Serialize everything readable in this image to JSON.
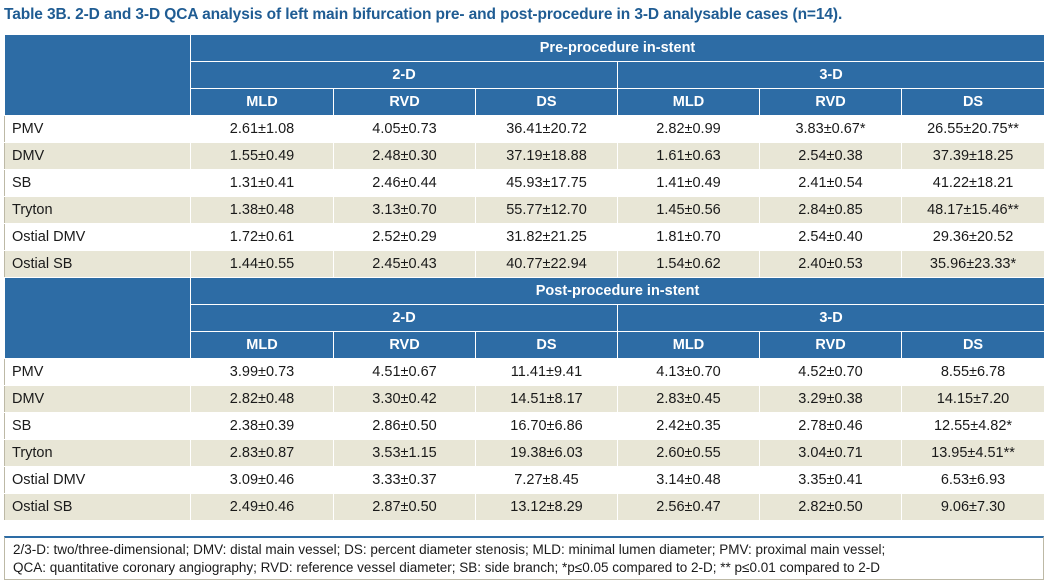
{
  "title": "Table 3B. 2-D and 3-D QCA analysis of left main bifurcation pre- and post-procedure in 3-D analysable cases (n=14).",
  "sections": [
    {
      "heading": "Pre-procedure in-stent",
      "groups": [
        "2-D",
        "3-D"
      ],
      "columns": [
        "MLD",
        "RVD",
        "DS",
        "MLD",
        "RVD",
        "DS"
      ],
      "rows": [
        {
          "label": "PMV",
          "cells": [
            "2.61±1.08",
            "4.05±0.73",
            "36.41±20.72",
            "2.82±0.99",
            "3.83±0.67*",
            "26.55±20.75**"
          ]
        },
        {
          "label": "DMV",
          "cells": [
            "1.55±0.49",
            "2.48±0.30",
            "37.19±18.88",
            "1.61±0.63",
            "2.54±0.38",
            "37.39±18.25"
          ]
        },
        {
          "label": "SB",
          "cells": [
            "1.31±0.41",
            "2.46±0.44",
            "45.93±17.75",
            "1.41±0.49",
            "2.41±0.54",
            "41.22±18.21"
          ]
        },
        {
          "label": "Tryton",
          "cells": [
            "1.38±0.48",
            "3.13±0.70",
            "55.77±12.70",
            "1.45±0.56",
            "2.84±0.85",
            "48.17±15.46**"
          ]
        },
        {
          "label": "Ostial DMV",
          "cells": [
            "1.72±0.61",
            "2.52±0.29",
            "31.82±21.25",
            "1.81±0.70",
            "2.54±0.40",
            "29.36±20.52"
          ]
        },
        {
          "label": "Ostial SB",
          "cells": [
            "1.44±0.55",
            "2.45±0.43",
            "40.77±22.94",
            "1.54±0.62",
            "2.40±0.53",
            "35.96±23.33*"
          ]
        }
      ]
    },
    {
      "heading": "Post-procedure in-stent",
      "groups": [
        "2-D",
        "3-D"
      ],
      "columns": [
        "MLD",
        "RVD",
        "DS",
        "MLD",
        "RVD",
        "DS"
      ],
      "rows": [
        {
          "label": "PMV",
          "cells": [
            "3.99±0.73",
            "4.51±0.67",
            "11.41±9.41",
            "4.13±0.70",
            "4.52±0.70",
            "8.55±6.78"
          ]
        },
        {
          "label": "DMV",
          "cells": [
            "2.82±0.48",
            "3.30±0.42",
            "14.51±8.17",
            "2.83±0.45",
            "3.29±0.38",
            "14.15±7.20"
          ]
        },
        {
          "label": "SB",
          "cells": [
            "2.38±0.39",
            "2.86±0.50",
            "16.70±6.86",
            "2.42±0.35",
            "2.78±0.46",
            "12.55±4.82*"
          ]
        },
        {
          "label": "Tryton",
          "cells": [
            "2.83±0.87",
            "3.53±1.15",
            "19.38±6.03",
            "2.60±0.55",
            "3.04±0.71",
            "13.95±4.51**"
          ]
        },
        {
          "label": "Ostial DMV",
          "cells": [
            "3.09±0.46",
            "3.33±0.37",
            "7.27±8.45",
            "3.14±0.48",
            "3.35±0.41",
            "6.53±6.93"
          ]
        },
        {
          "label": "Ostial SB",
          "cells": [
            "2.49±0.46",
            "2.87±0.50",
            "13.12±8.29",
            "2.56±0.47",
            "2.82±0.50",
            "9.06±7.30"
          ]
        }
      ]
    }
  ],
  "footnote": {
    "line1": "2/3-D: two/three-dimensional; DMV: distal main vessel; DS: percent diameter stenosis; MLD: minimal lumen diameter; PMV: proximal main vessel;",
    "line2": "QCA: quantitative coronary angiography; RVD: reference vessel diameter; SB: side branch; *p≤0.05 compared to 2-D; ** p≤0.01 compared to 2-D"
  },
  "colors": {
    "header_bg": "#2d6ca5",
    "title_text": "#1f5c93",
    "stripe_bg": "#e8e6d6"
  }
}
